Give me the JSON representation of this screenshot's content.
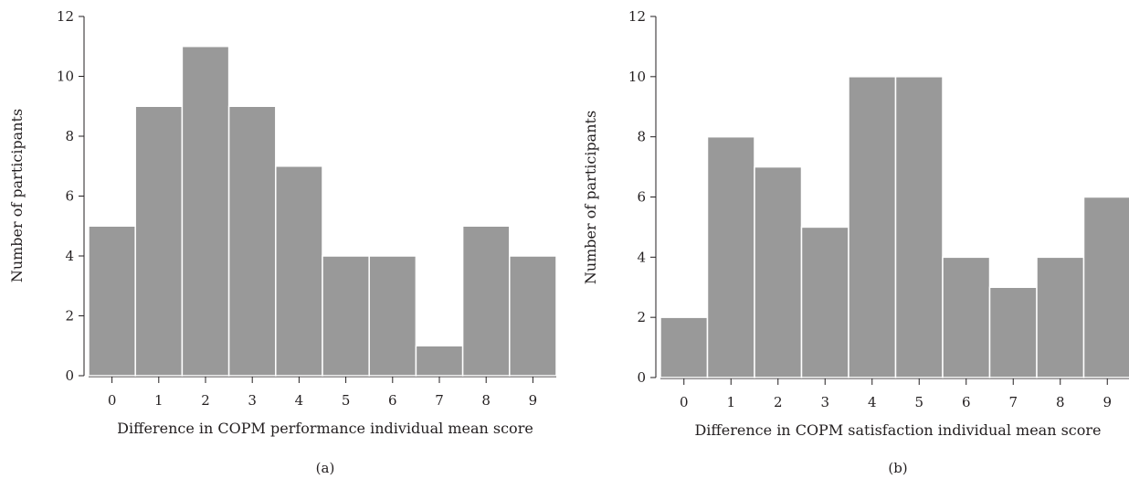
{
  "chart_data": [
    {
      "type": "bar",
      "panel_label": "(a)",
      "categories": [
        "0",
        "1",
        "2",
        "3",
        "4",
        "5",
        "6",
        "7",
        "8",
        "9"
      ],
      "values": [
        5,
        9,
        11,
        9,
        7,
        4,
        4,
        1,
        5,
        4
      ],
      "xlabel": "Difference in COPM performance individual mean score",
      "ylabel": "Number of participants",
      "ylim": [
        0,
        12
      ],
      "yticks": [
        "0",
        "2",
        "4",
        "6",
        "8",
        "10",
        "12"
      ],
      "bar_color": "#999999",
      "grid": false
    },
    {
      "type": "bar",
      "panel_label": "(b)",
      "categories": [
        "0",
        "1",
        "2",
        "3",
        "4",
        "5",
        "6",
        "7",
        "8",
        "9"
      ],
      "values": [
        2,
        8,
        7,
        5,
        10,
        10,
        4,
        3,
        4,
        6
      ],
      "xlabel": "Difference in COPM satisfaction individual mean score",
      "ylabel": "Number of participants",
      "ylim": [
        0,
        12
      ],
      "yticks": [
        "0",
        "2",
        "4",
        "6",
        "8",
        "10",
        "12"
      ],
      "bar_color": "#999999",
      "grid": false
    }
  ]
}
